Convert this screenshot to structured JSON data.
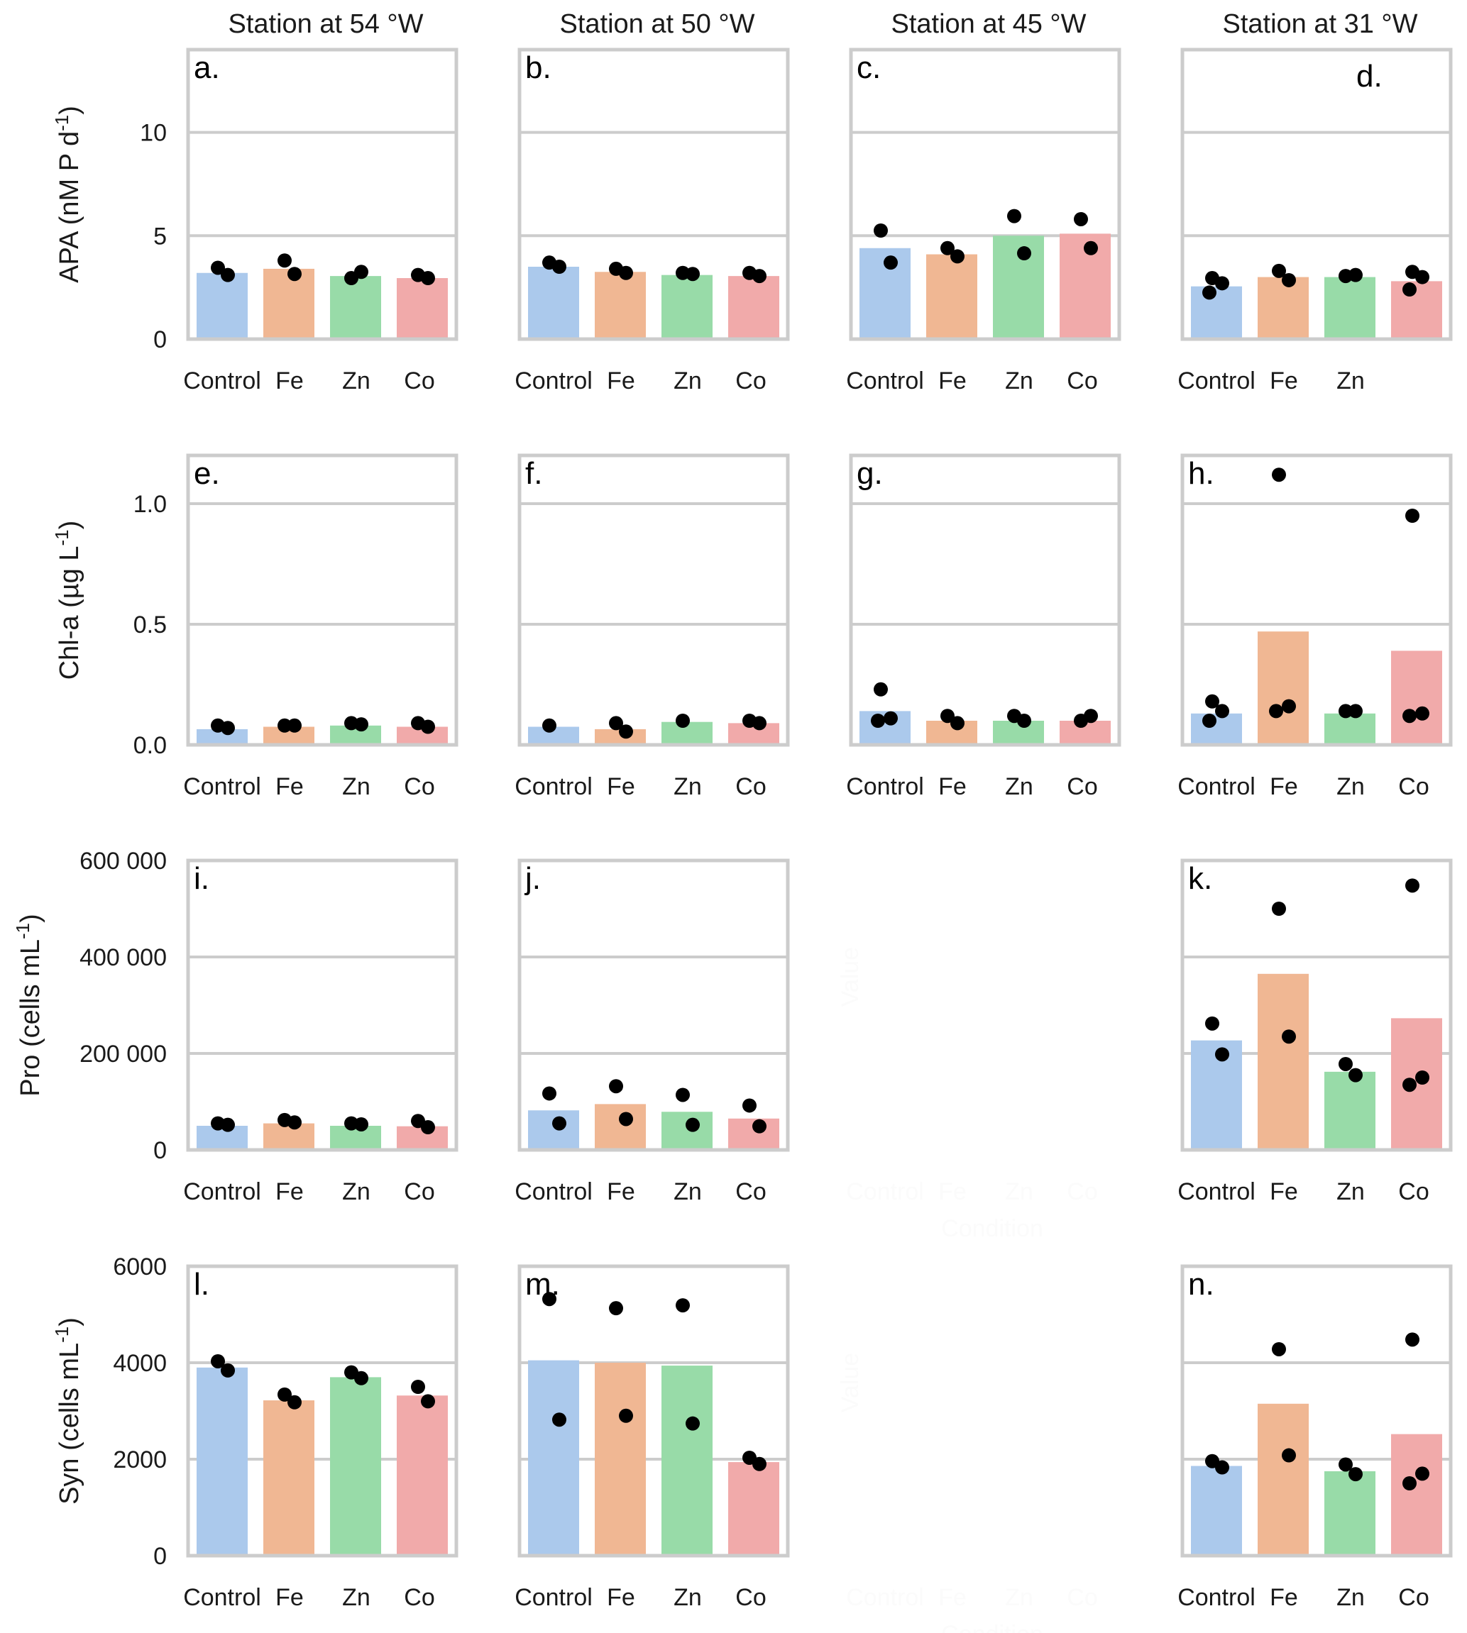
{
  "chart_data": {
    "type": "bar",
    "description": "Grid of bar charts (mean) with overlaid replicate points, by station (columns) and variable (rows)",
    "categories": [
      "Control",
      "Fe",
      "Zn",
      "Co"
    ],
    "colors": {
      "Control": "#abc9ec",
      "Fe": "#f0b793",
      "Zn": "#98dba8",
      "Co": "#f1aaaa"
    },
    "point_color": "#000000",
    "stations": [
      "Station at 54 °W",
      "Station at 50 °W",
      "Station at 45 °W",
      "Station at 31 °W"
    ],
    "rows": [
      {
        "ylabel": "APA (nM P d",
        "ylabel_sup": "-1",
        "ylabel_tail": ")",
        "ylim": [
          0,
          14
        ],
        "yticks": [
          0,
          5,
          10
        ],
        "ytick_labels": [
          "0",
          "5",
          "10"
        ],
        "panels": [
          {
            "label": "a.",
            "station": 0,
            "means": [
              3.2,
              3.4,
              3.05,
              2.95
            ],
            "points": [
              [
                3.45,
                3.1
              ],
              [
                3.8,
                3.15
              ],
              [
                2.95,
                3.25
              ],
              [
                3.1,
                2.95
              ]
            ]
          },
          {
            "label": "b.",
            "station": 1,
            "means": [
              3.5,
              3.25,
              3.1,
              3.05
            ],
            "points": [
              [
                3.7,
                3.5
              ],
              [
                3.4,
                3.2
              ],
              [
                3.2,
                3.15
              ],
              [
                3.2,
                3.05
              ]
            ]
          },
          {
            "label": "c.",
            "station": 2,
            "means": [
              4.4,
              4.1,
              5.0,
              5.1
            ],
            "points": [
              [
                5.25,
                3.7
              ],
              [
                4.4,
                4.0
              ],
              [
                5.95,
                4.15
              ],
              [
                5.8,
                4.4
              ]
            ]
          },
          {
            "label": "d.",
            "station": 3,
            "label_pos": "top-right",
            "means": [
              2.55,
              3.0,
              3.0,
              2.8
            ],
            "points": [
              [
                2.95,
                2.7,
                2.25
              ],
              [
                3.3,
                2.85
              ],
              [
                3.05,
                3.1
              ],
              [
                3.25,
                3.0,
                2.4
              ]
            ],
            "xtick_labels_visible": [
              "Control",
              "Fe",
              "Zn"
            ]
          }
        ]
      },
      {
        "ylabel": "Chl-a (µg L",
        "ylabel_sup": "-1",
        "ylabel_tail": ")",
        "ylim": [
          0,
          1.2
        ],
        "yticks": [
          0.0,
          0.5,
          1.0
        ],
        "ytick_labels": [
          "0.0",
          "0.5",
          "1.0"
        ],
        "panels": [
          {
            "label": "e.",
            "station": 0,
            "means": [
              0.065,
              0.075,
              0.08,
              0.075
            ],
            "points": [
              [
                0.08,
                0.07
              ],
              [
                0.08,
                0.08
              ],
              [
                0.09,
                0.085
              ],
              [
                0.09,
                0.075
              ]
            ]
          },
          {
            "label": "f.",
            "station": 1,
            "means": [
              0.075,
              0.065,
              0.095,
              0.09
            ],
            "points": [
              [
                0.08
              ],
              [
                0.09,
                0.055
              ],
              [
                0.1
              ],
              [
                0.1,
                0.09
              ]
            ]
          },
          {
            "label": "g.",
            "station": 2,
            "means": [
              0.14,
              0.1,
              0.1,
              0.1
            ],
            "points": [
              [
                0.23,
                0.11,
                0.1
              ],
              [
                0.12,
                0.09
              ],
              [
                0.12,
                0.1
              ],
              [
                0.1,
                0.12
              ]
            ]
          },
          {
            "label": "h.",
            "station": 3,
            "means": [
              0.13,
              0.47,
              0.13,
              0.39
            ],
            "points": [
              [
                0.18,
                0.14,
                0.1
              ],
              [
                1.12,
                0.16,
                0.14
              ],
              [
                0.14,
                0.14
              ],
              [
                0.95,
                0.13,
                0.12
              ]
            ]
          }
        ]
      },
      {
        "ylabel": "Pro (cells mL",
        "ylabel_sup": "-1",
        "ylabel_tail": ")",
        "ylim": [
          0,
          600000
        ],
        "yticks": [
          0,
          200000,
          400000,
          600000
        ],
        "ytick_labels": [
          "0",
          "200 000",
          "400 000",
          "600 000"
        ],
        "panels": [
          {
            "label": "i.",
            "station": 0,
            "means": [
              50000,
              55000,
              50000,
              49000
            ],
            "points": [
              [
                55000,
                52000
              ],
              [
                62000,
                57000
              ],
              [
                55000,
                53000
              ],
              [
                60000,
                47000
              ]
            ]
          },
          {
            "label": "j.",
            "station": 1,
            "means": [
              82000,
              95000,
              79000,
              65000
            ],
            "points": [
              [
                117000,
                55000
              ],
              [
                132000,
                64000
              ],
              [
                114000,
                52000
              ],
              [
                92000,
                49000
              ]
            ]
          },
          {
            "label": "k.",
            "station": 3,
            "means": [
              227000,
              365000,
              162000,
              273000
            ],
            "points": [
              [
                262000,
                198000
              ],
              [
                500000,
                235000
              ],
              [
                178000,
                155000
              ],
              [
                548000,
                150000,
                135000
              ]
            ]
          }
        ],
        "hidden_panel": {
          "station": 2,
          "ylabel": "Value",
          "xlabel": "Condition"
        }
      },
      {
        "ylabel": "Syn (cells mL",
        "ylabel_sup": "-1",
        "ylabel_tail": ")",
        "ylim": [
          0,
          6000
        ],
        "yticks": [
          0,
          2000,
          4000,
          6000
        ],
        "ytick_labels": [
          "0",
          "2000",
          "4000",
          "6000"
        ],
        "panels": [
          {
            "label": "l.",
            "station": 0,
            "means": [
              3900,
              3220,
              3700,
              3320
            ],
            "points": [
              [
                4030,
                3840
              ],
              [
                3340,
                3180
              ],
              [
                3800,
                3680
              ],
              [
                3500,
                3200
              ]
            ]
          },
          {
            "label": "m.",
            "station": 1,
            "means": [
              4050,
              4000,
              3940,
              1940
            ],
            "points": [
              [
                5320,
                2820
              ],
              [
                5130,
                2900
              ],
              [
                5190,
                2740
              ],
              [
                2030,
                1900
              ]
            ]
          },
          {
            "label": "n.",
            "station": 3,
            "means": [
              1860,
              3150,
              1750,
              2520
            ],
            "points": [
              [
                1960,
                1830
              ],
              [
                4280,
                2080
              ],
              [
                1890,
                1690
              ],
              [
                4480,
                1700,
                1500
              ]
            ]
          }
        ],
        "hidden_panel": {
          "station": 2,
          "ylabel": "Value",
          "xlabel": "Condition"
        }
      }
    ],
    "grid": true,
    "legend": "none"
  }
}
